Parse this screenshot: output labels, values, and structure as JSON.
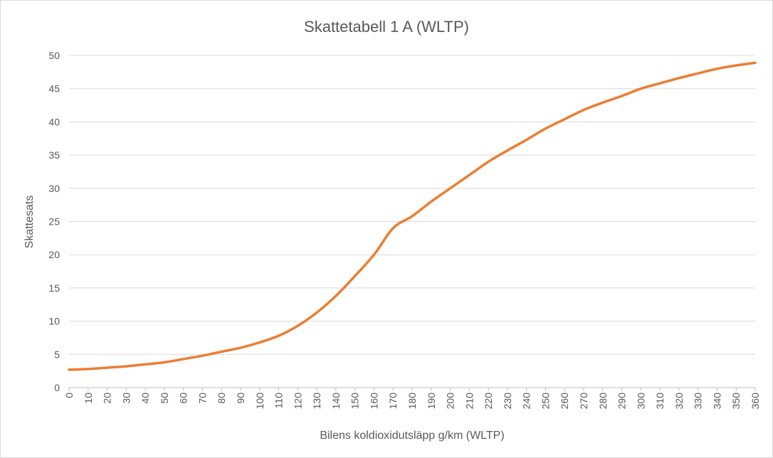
{
  "chart_data": {
    "type": "line",
    "title": "Skattetabell 1 A (WLTP)",
    "xlabel": "Bilens koldioxidutsläpp g/km (WLTP)",
    "ylabel": "Skattesats",
    "xlim": [
      0,
      360
    ],
    "ylim": [
      0,
      50
    ],
    "x_ticks": [
      0,
      10,
      20,
      30,
      40,
      50,
      60,
      70,
      80,
      90,
      100,
      110,
      120,
      130,
      140,
      150,
      160,
      170,
      180,
      190,
      200,
      210,
      220,
      230,
      240,
      250,
      260,
      270,
      280,
      290,
      300,
      310,
      320,
      330,
      340,
      350,
      360
    ],
    "y_ticks": [
      0,
      5,
      10,
      15,
      20,
      25,
      30,
      35,
      40,
      45,
      50
    ],
    "grid": "horizontal",
    "legend": "none",
    "series": [
      {
        "name": "Skattesats",
        "color": "#ED7D31",
        "x": [
          0,
          10,
          20,
          30,
          40,
          50,
          60,
          70,
          80,
          90,
          100,
          110,
          120,
          130,
          140,
          150,
          160,
          170,
          180,
          190,
          200,
          210,
          220,
          230,
          240,
          250,
          260,
          270,
          280,
          290,
          300,
          310,
          320,
          330,
          340,
          350,
          360
        ],
        "y": [
          2.7,
          2.8,
          3.0,
          3.2,
          3.5,
          3.8,
          4.3,
          4.8,
          5.4,
          6.0,
          6.8,
          7.8,
          9.3,
          11.3,
          13.8,
          16.8,
          20.0,
          24.0,
          25.8,
          28.0,
          30.0,
          32.0,
          34.0,
          35.7,
          37.3,
          39.0,
          40.4,
          41.8,
          42.9,
          43.9,
          45.0,
          45.8,
          46.6,
          47.3,
          48.0,
          48.5,
          48.9
        ]
      }
    ]
  }
}
